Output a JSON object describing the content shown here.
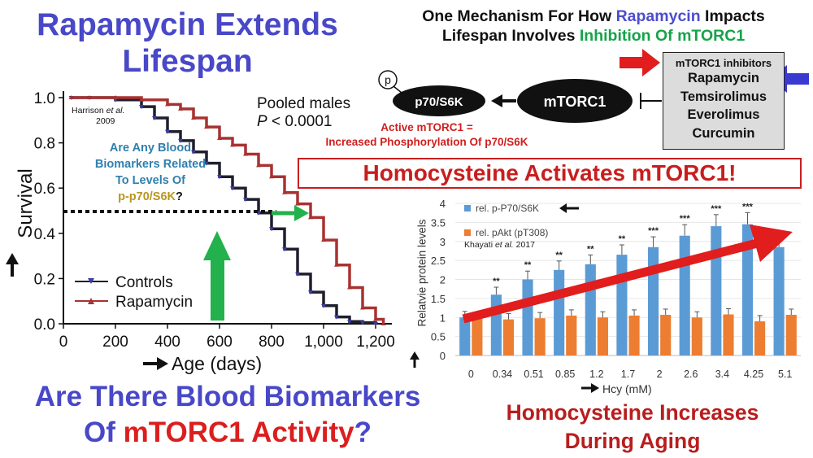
{
  "titles": {
    "main_line1": "Rapamycin Extends",
    "main_line2": "Lifespan",
    "mech_part1": "One Mechanism For How ",
    "mech_rapamycin": "Rapamycin",
    "mech_part2": " Impacts",
    "mech_line2_part1": "Lifespan Involves ",
    "mech_inhibition": "Inhibition Of mTORC1",
    "homocysteine_activates": "Homocysteine Activates mTORC1!",
    "bottom_question_part1": "Are There Blood Biomarkers",
    "bottom_question_of": "Of ",
    "bottom_question_mtorc1": "mTORC1 Activity",
    "bottom_question_mark": "?",
    "bottom_right_line1": "Homocysteine Increases",
    "bottom_right_line2": "During Aging"
  },
  "pathway": {
    "p_label": "p",
    "p70_label": "p70/S6K",
    "mtorc1_label": "mTORC1",
    "inhibitors_header": "mTORC1 inhibitors",
    "inhibitors": [
      "Rapamycin",
      "Temsirolimus",
      "Everolimus",
      "Curcumin"
    ],
    "active_note_line1": "Active mTORC1 =",
    "active_note_line2": "Increased Phosphorylation Of p70/S6K"
  },
  "survival_annotations": {
    "harrison_name": "Harrison ",
    "harrison_etal": "et al.",
    "harrison_year": "2009",
    "pooled": "Pooled males",
    "p_italic": "P",
    "p_value": " < 0.0001",
    "bio_q_line1": "Are Any Blood",
    "bio_q_line2": "Biomarkers Related",
    "bio_q_line3": "To Levels Of",
    "bio_q_line4": "p-p70/S6K",
    "bio_q_mark": "?"
  },
  "bar_annotations": {
    "khayati_name": "Khayati ",
    "khayati_etal": "et al.",
    "khayati_year": " 2017"
  },
  "colors": {
    "controls": "#1f1f2e",
    "rapamycin": "#a83232",
    "blue_bar": "#5b9bd5",
    "orange_bar": "#ed7d31",
    "red_arrow": "#e11d1d",
    "green_arrow": "#22b14c",
    "purple_title": "#4848c8"
  },
  "chart_data": [
    {
      "type": "line",
      "xlabel": "Age (days)",
      "ylabel": "Survival",
      "xlim": [
        0,
        1250
      ],
      "ylim": [
        0,
        1.0
      ],
      "xticks": [
        "0",
        "200",
        "400",
        "600",
        "800",
        "1,000",
        "1,200"
      ],
      "yticks": [
        "0.0",
        "0.2",
        "0.4",
        "0.6",
        "0.8",
        "1.0"
      ],
      "xtick_values": [
        0,
        200,
        400,
        600,
        800,
        1000,
        1200
      ],
      "ytick_values": [
        0.0,
        0.2,
        0.4,
        0.6,
        0.8,
        1.0
      ],
      "legend": "bottom-left",
      "series": [
        {
          "name": "Controls",
          "x": [
            30,
            100,
            200,
            300,
            350,
            400,
            450,
            500,
            550,
            600,
            650,
            700,
            750,
            800,
            850,
            900,
            950,
            1000,
            1050,
            1100,
            1150,
            1200
          ],
          "y": [
            1.0,
            1.0,
            0.99,
            0.96,
            0.91,
            0.85,
            0.81,
            0.76,
            0.71,
            0.65,
            0.6,
            0.55,
            0.49,
            0.42,
            0.33,
            0.22,
            0.14,
            0.08,
            0.03,
            0.01,
            0.005,
            0.0
          ]
        },
        {
          "name": "Rapamycin",
          "x": [
            30,
            100,
            200,
            300,
            400,
            450,
            500,
            550,
            600,
            650,
            700,
            750,
            800,
            850,
            900,
            950,
            1000,
            1050,
            1100,
            1150,
            1200,
            1230
          ],
          "y": [
            1.0,
            1.0,
            1.0,
            0.99,
            0.97,
            0.95,
            0.91,
            0.87,
            0.82,
            0.79,
            0.75,
            0.7,
            0.65,
            0.58,
            0.53,
            0.47,
            0.37,
            0.26,
            0.16,
            0.07,
            0.02,
            0.0
          ]
        }
      ]
    },
    {
      "type": "bar",
      "xlabel": "Hcy (mM)",
      "ylabel": "Relatvie protein levels",
      "ylim": [
        0,
        4
      ],
      "yticks": [
        "0",
        "0.5",
        "1",
        "1.5",
        "2",
        "2.5",
        "3",
        "3.5",
        "4"
      ],
      "ytick_values": [
        0,
        0.5,
        1,
        1.5,
        2,
        2.5,
        3,
        3.5,
        4
      ],
      "categories": [
        "0",
        "0.34",
        "0.51",
        "0.85",
        "1.2",
        "1.7",
        "2",
        "2.6",
        "3.4",
        "4.25",
        "5.1"
      ],
      "significance": [
        "",
        "**",
        "**",
        "**",
        "**",
        "**",
        "***",
        "***",
        "***",
        "***",
        ""
      ],
      "legend": "top-left",
      "series": [
        {
          "name": "rel. p-P70/S6K",
          "values": [
            1.0,
            1.6,
            2.0,
            2.25,
            2.4,
            2.65,
            2.85,
            3.15,
            3.4,
            3.45,
            2.85
          ]
        },
        {
          "name": "rel. pAkt (pT308)",
          "values": [
            0.98,
            0.95,
            0.98,
            1.05,
            1.0,
            1.05,
            1.07,
            1.0,
            1.08,
            0.9,
            1.07
          ]
        }
      ]
    }
  ]
}
